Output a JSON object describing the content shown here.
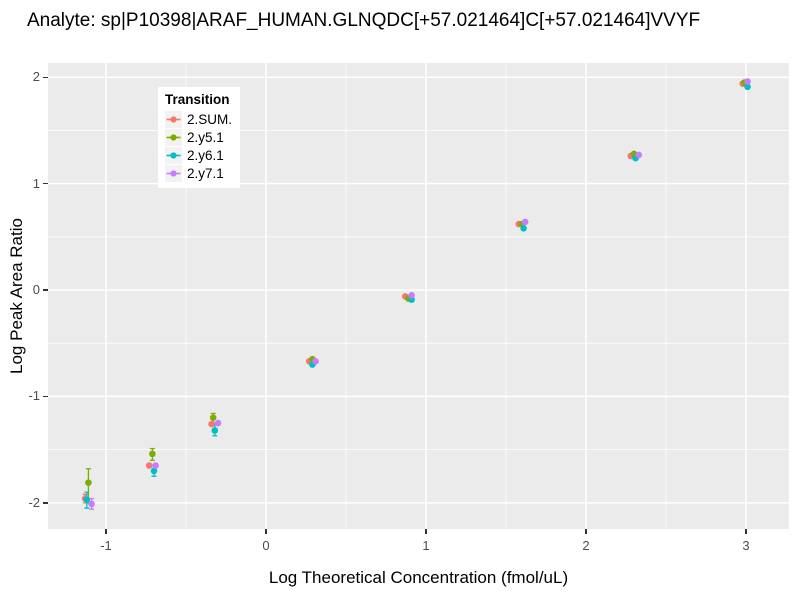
{
  "title": "Analyte: sp|P10398|ARAF_HUMAN.GLNQDC[+57.021464]C[+57.021464]VVYF",
  "chart_data": {
    "type": "scatter",
    "title": "Analyte: sp|P10398|ARAF_HUMAN.GLNQDC[+57.021464]C[+57.021464]VVYF",
    "xlabel": "Log Theoretical Concentration (fmol/uL)",
    "ylabel": "Log Peak Area Ratio",
    "x_ticks": [
      -1,
      0,
      1,
      2,
      3
    ],
    "y_ticks": [
      -2,
      -1,
      0,
      1,
      2
    ],
    "x_minor": [
      -0.5,
      0.5,
      1.5,
      2.5
    ],
    "y_minor": [
      -1.5,
      -0.5,
      0.5,
      1.5
    ],
    "xlim": [
      -1.3625,
      3.269
    ],
    "ylim": [
      -2.246,
      2.134
    ],
    "grid": true,
    "panel_bg": "#EBEBEB",
    "grid_color": "#FFFFFF",
    "legend_title": "Transition",
    "legend_position": "inside-top-left",
    "series": [
      {
        "name": "2.SUM.",
        "color": "#F8766D",
        "points": [
          {
            "x": -1.13,
            "y": -1.96,
            "lo": -2.0,
            "hi": -1.92
          },
          {
            "x": -0.73,
            "y": -1.65
          },
          {
            "x": -0.34,
            "y": -1.26
          },
          {
            "x": 0.27,
            "y": -0.67
          },
          {
            "x": 0.87,
            "y": -0.06
          },
          {
            "x": 1.58,
            "y": 0.62
          },
          {
            "x": 2.28,
            "y": 1.26
          },
          {
            "x": 2.98,
            "y": 1.94
          }
        ]
      },
      {
        "name": "2.y5.1",
        "color": "#7CAE00",
        "points": [
          {
            "x": -1.11,
            "y": -1.81,
            "lo": -2.0,
            "hi": -1.68
          },
          {
            "x": -0.71,
            "y": -1.54,
            "lo": -1.6,
            "hi": -1.49
          },
          {
            "x": -0.33,
            "y": -1.2,
            "lo": -1.25,
            "hi": -1.16
          },
          {
            "x": 0.29,
            "y": -0.65
          },
          {
            "x": 0.89,
            "y": -0.08
          },
          {
            "x": 1.6,
            "y": 0.62
          },
          {
            "x": 2.3,
            "y": 1.28
          },
          {
            "x": 2.99,
            "y": 1.95
          }
        ]
      },
      {
        "name": "2.y6.1",
        "color": "#00BFC4",
        "points": [
          {
            "x": -1.12,
            "y": -1.97,
            "lo": -2.05,
            "hi": -1.9
          },
          {
            "x": -0.7,
            "y": -1.7,
            "lo": -1.75,
            "hi": -1.65
          },
          {
            "x": -0.32,
            "y": -1.32,
            "lo": -1.37,
            "hi": -1.27
          },
          {
            "x": 0.29,
            "y": -0.7
          },
          {
            "x": 0.91,
            "y": -0.09
          },
          {
            "x": 1.61,
            "y": 0.58
          },
          {
            "x": 2.31,
            "y": 1.24
          },
          {
            "x": 3.01,
            "y": 1.91
          }
        ]
      },
      {
        "name": "2.y7.1",
        "color": "#C77CFF",
        "points": [
          {
            "x": -1.09,
            "y": -2.01,
            "lo": -2.06,
            "hi": -1.96
          },
          {
            "x": -0.69,
            "y": -1.65
          },
          {
            "x": -0.3,
            "y": -1.25
          },
          {
            "x": 0.31,
            "y": -0.67
          },
          {
            "x": 0.91,
            "y": -0.05
          },
          {
            "x": 1.62,
            "y": 0.64
          },
          {
            "x": 2.33,
            "y": 1.27
          },
          {
            "x": 3.01,
            "y": 1.96
          }
        ]
      }
    ]
  }
}
